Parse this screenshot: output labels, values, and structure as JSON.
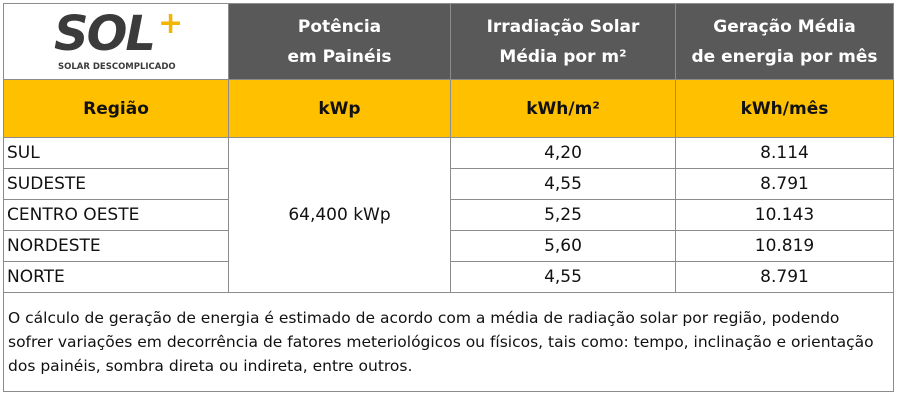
{
  "logo": {
    "name": "SOL",
    "mark": "+",
    "tagline": "SOLAR DESCOMPLICADO"
  },
  "header": {
    "columns": [
      {
        "lines": [
          "Potência",
          "em Painéis"
        ]
      },
      {
        "lines": [
          "Irradiação Solar",
          "Média por m²"
        ]
      },
      {
        "lines": [
          "Geração Média",
          "de energia por mês"
        ]
      }
    ]
  },
  "units": [
    "Região",
    "kWp",
    "kWh/m²",
    "kWh/mês"
  ],
  "power": "64,400 kWp",
  "table": {
    "rows": [
      [
        "SUL",
        "4,20",
        "8.114"
      ],
      [
        "SUDESTE",
        "4,55",
        "8.791"
      ],
      [
        "CENTRO OESTE",
        "5,25",
        "10.143"
      ],
      [
        "NORDESTE",
        "5,60",
        "10.819"
      ],
      [
        "NORTE",
        "4,55",
        "8.791"
      ]
    ]
  },
  "note": "O cálculo de geração de energia é estimado de acordo com a média de radiação solar por região, podendo sofrer variações em decorrência de fatores meteriológicos ou físicos, tais como: tempo, inclinação e orientação dos painéis, sombra direta ou indireta, entre outros."
}
